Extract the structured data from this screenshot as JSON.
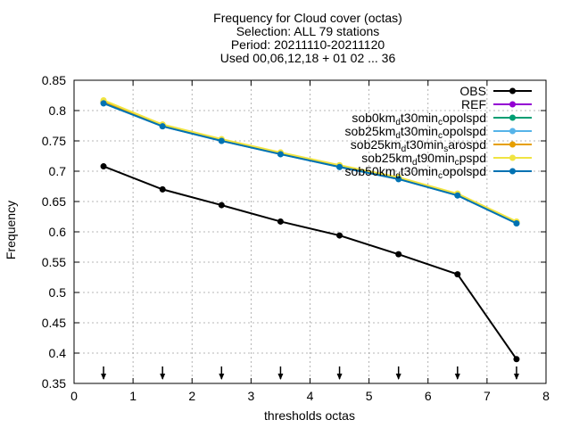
{
  "chart_data": {
    "type": "line",
    "title_lines": [
      "Frequency  for Cloud cover (octas)",
      "Selection: ALL     79 stations",
      "Period: 20211110-20211120",
      "Used 00,06,12,18 + 01 02 ... 36"
    ],
    "xlabel": "thresholds octas",
    "ylabel": "Frequency",
    "xlim": [
      0,
      8
    ],
    "ylim": [
      0.35,
      0.85
    ],
    "x_ticks": [
      0,
      1,
      2,
      3,
      4,
      5,
      6,
      7,
      8
    ],
    "y_ticks": [
      0.35,
      0.4,
      0.45,
      0.5,
      0.55,
      0.6,
      0.65,
      0.7,
      0.75,
      0.8,
      0.85
    ],
    "grid": true,
    "legend_position": "top-right",
    "x": [
      0.5,
      1.5,
      2.5,
      3.5,
      4.5,
      5.5,
      6.5,
      7.5
    ],
    "arrow_x": [
      0.5,
      1.5,
      2.5,
      3.5,
      4.5,
      5.5,
      6.5,
      7.5
    ],
    "series": [
      {
        "name": "OBS",
        "color": "#000000",
        "marker": "circle",
        "values": [
          0.708,
          0.67,
          0.644,
          0.617,
          0.594,
          0.563,
          0.53,
          0.39
        ]
      },
      {
        "name": "REF",
        "color": "#9400d3",
        "marker": "circle",
        "values": [
          0.813,
          0.775,
          0.751,
          0.729,
          0.708,
          0.688,
          0.661,
          0.615
        ]
      },
      {
        "name": "sob0km_d t30min_c opolspd",
        "name_parts": [
          [
            "sob0km",
            ""
          ],
          [
            "d",
            "sub"
          ],
          [
            "t30min",
            ""
          ],
          [
            "c",
            "sub"
          ],
          [
            "opolspd",
            ""
          ]
        ],
        "color": "#009e73",
        "marker": "circle",
        "values": [
          0.813,
          0.775,
          0.751,
          0.729,
          0.708,
          0.688,
          0.661,
          0.615
        ]
      },
      {
        "name": "sob25km_d t30min_c opolspd",
        "name_parts": [
          [
            "sob25km",
            ""
          ],
          [
            "d",
            "sub"
          ],
          [
            "t30min",
            ""
          ],
          [
            "c",
            "sub"
          ],
          [
            "opolspd",
            ""
          ]
        ],
        "color": "#56b4e9",
        "marker": "circle",
        "values": [
          0.812,
          0.774,
          0.75,
          0.728,
          0.707,
          0.687,
          0.66,
          0.614
        ]
      },
      {
        "name": "sob25km_d t30min_s arospd",
        "name_parts": [
          [
            "sob25km",
            ""
          ],
          [
            "d",
            "sub"
          ],
          [
            "t30min",
            ""
          ],
          [
            "s",
            "sub"
          ],
          [
            "arospd",
            ""
          ]
        ],
        "color": "#e69f00",
        "marker": "circle",
        "values": [
          0.815,
          0.776,
          0.752,
          0.73,
          0.709,
          0.689,
          0.662,
          0.616
        ]
      },
      {
        "name": "sob25km_d t90min_c pspd",
        "name_parts": [
          [
            "sob25km",
            ""
          ],
          [
            "d",
            "sub"
          ],
          [
            "t90min",
            ""
          ],
          [
            "c",
            "sub"
          ],
          [
            "pspd",
            ""
          ]
        ],
        "color": "#f0e442",
        "marker": "circle",
        "values": [
          0.817,
          0.777,
          0.753,
          0.731,
          0.71,
          0.69,
          0.663,
          0.617
        ]
      },
      {
        "name": "sob50km_d t30min_c opolspd",
        "name_parts": [
          [
            "sob50km",
            ""
          ],
          [
            "d",
            "sub"
          ],
          [
            "t30min",
            ""
          ],
          [
            "c",
            "sub"
          ],
          [
            "opolspd",
            ""
          ]
        ],
        "color": "#0072b2",
        "marker": "circle",
        "values": [
          0.812,
          0.774,
          0.75,
          0.728,
          0.707,
          0.687,
          0.66,
          0.614
        ]
      }
    ]
  }
}
